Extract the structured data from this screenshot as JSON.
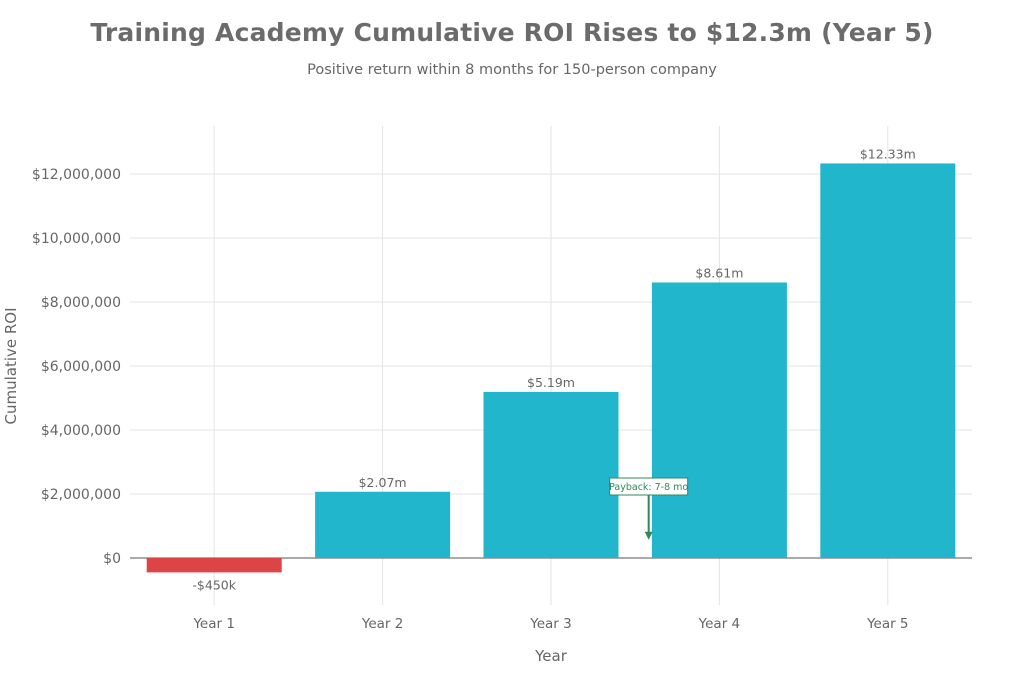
{
  "title": "Training Academy Cumulative ROI Rises to $12.3m (Year 5)",
  "subtitle": "Positive return within 8 months for 150-person company",
  "colors": {
    "positive": "#21b6cc",
    "negative": "#dc4446",
    "annotation": "#2e8b57",
    "grid": "#e3e3e3",
    "axis_text": "#666666"
  },
  "chart_data": {
    "type": "bar",
    "categories": [
      "Year 1",
      "Year 2",
      "Year 3",
      "Year 4",
      "Year 5"
    ],
    "values": [
      -450000,
      2070000,
      5190000,
      8610000,
      12330000
    ],
    "data_labels": [
      "-$450k",
      "$2.07m",
      "$5.19m",
      "$8.61m",
      "$12.33m"
    ],
    "xlabel": "Year",
    "ylabel": "Cumulative ROI",
    "ylim": [
      -1300000,
      13500000
    ],
    "yticks": [
      0,
      2000000,
      4000000,
      6000000,
      8000000,
      10000000,
      12000000
    ],
    "ytick_labels": [
      "$0",
      "$2,000,000",
      "$4,000,000",
      "$6,000,000",
      "$8,000,000",
      "$10,000,000",
      "$12,000,000"
    ],
    "grid": true,
    "annotation": {
      "text": "Payback: 7-8 mo",
      "x_category_position": 2.58,
      "y_value": 600000
    }
  }
}
